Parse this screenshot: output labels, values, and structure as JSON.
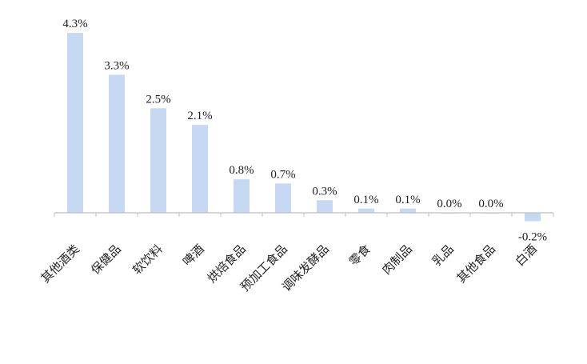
{
  "chart_data": {
    "type": "bar",
    "categories": [
      "其他酒类",
      "保健品",
      "软饮料",
      "啤酒",
      "烘焙食品",
      "预加工食品",
      "调味发酵品",
      "零食",
      "肉制品",
      "乳品",
      "其他食品",
      "白酒"
    ],
    "values": [
      4.3,
      3.3,
      2.5,
      2.1,
      0.8,
      0.7,
      0.3,
      0.1,
      0.1,
      0.0,
      0.0,
      -0.2
    ],
    "value_labels": [
      "4.3%",
      "3.3%",
      "2.5%",
      "2.1%",
      "0.8%",
      "0.7%",
      "0.3%",
      "0.1%",
      "0.1%",
      "0.0%",
      "0.0%",
      "-0.2%"
    ],
    "unit": "%",
    "ylim": [
      -0.2,
      4.3
    ],
    "grid": false,
    "legend": "none",
    "bar_color": "#c6d8f2",
    "axis_color": "#bfbfbf"
  }
}
